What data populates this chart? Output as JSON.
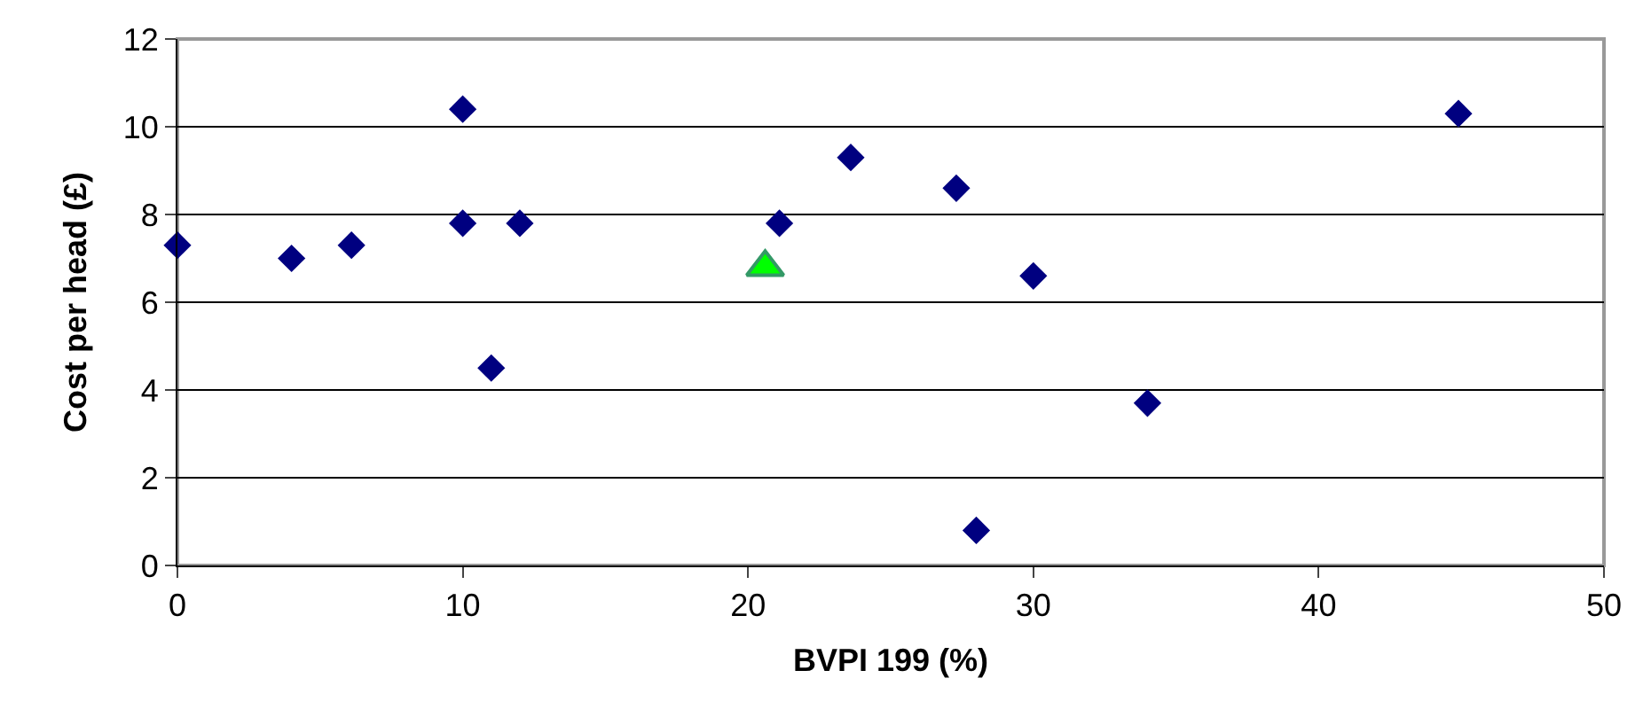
{
  "chart_data": {
    "type": "scatter",
    "xlabel": "BVPI 199 (%)",
    "ylabel": "Cost per head (£)",
    "xlim": [
      0,
      50
    ],
    "xticks": [
      0,
      10,
      20,
      30,
      40,
      50
    ],
    "ylim": [
      0,
      12
    ],
    "yticks": [
      0,
      2,
      4,
      6,
      8,
      10,
      12
    ],
    "grid": "y",
    "legend": false,
    "series": [
      {
        "color": "#000080",
        "marker": "diamond",
        "x": [
          0,
          4.0,
          6.1,
          10,
          10,
          11,
          12,
          21.1,
          23.6,
          27.3,
          28,
          30,
          34,
          44.9
        ],
        "values": [
          7.3,
          7.0,
          7.3,
          10.4,
          7.8,
          4.5,
          7.8,
          7.8,
          9.3,
          8.6,
          0.8,
          6.6,
          3.7,
          10.3
        ]
      },
      {
        "color": "#00ff00",
        "marker": "triangle",
        "x": [
          20.6
        ],
        "values": [
          6.8
        ]
      }
    ]
  }
}
